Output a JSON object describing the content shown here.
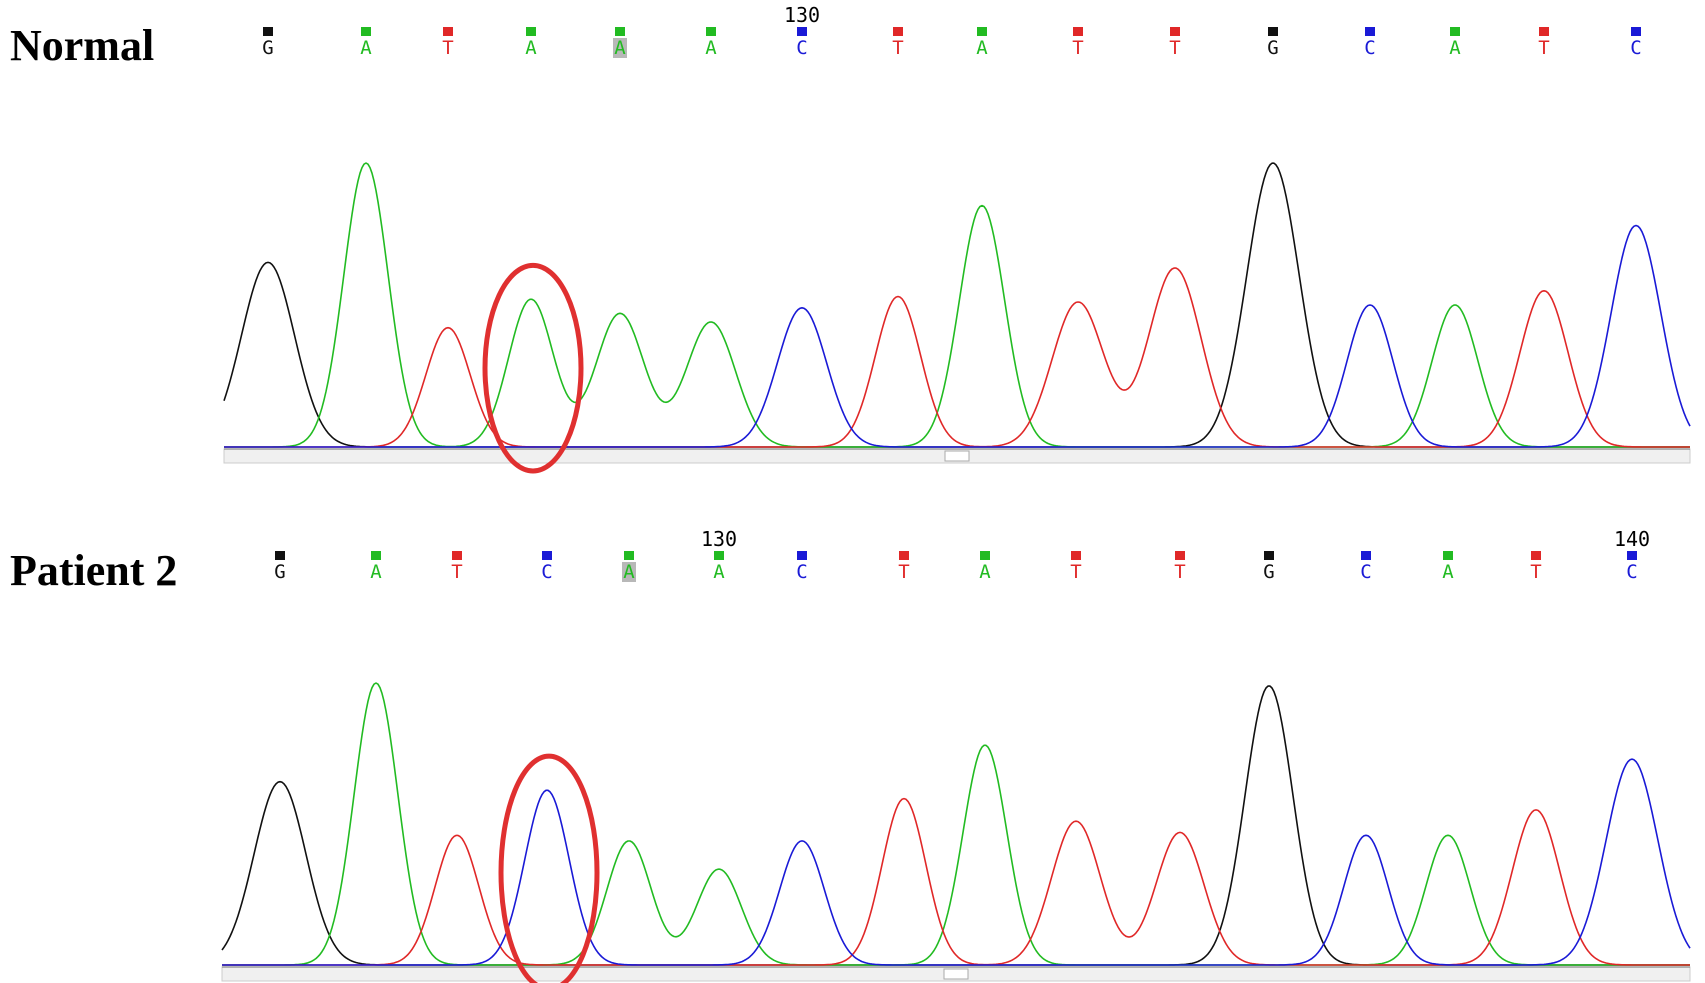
{
  "colors": {
    "A": "#22bb22",
    "C": "#1a1ad6",
    "G": "#111111",
    "T": "#e02828",
    "highlight": "#e03030",
    "axis": "#cccccc"
  },
  "chart_data": [
    {
      "type": "line",
      "title": "Normal",
      "bases": [
        "G",
        "A",
        "T",
        "A",
        "A",
        "A",
        "C",
        "T",
        "A",
        "T",
        "T",
        "G",
        "C",
        "A",
        "T",
        "C"
      ],
      "shaded_index": 4,
      "position_labels": [
        {
          "index": 6,
          "text": "130"
        }
      ],
      "peaks": [
        0.65,
        1.0,
        0.42,
        0.52,
        0.47,
        0.44,
        0.49,
        0.53,
        0.85,
        0.51,
        0.63,
        1.0,
        0.5,
        0.5,
        0.55,
        0.78
      ],
      "highlighted_index": 3,
      "ylim": [
        0,
        1
      ]
    },
    {
      "type": "line",
      "title": "Patient 2",
      "bases": [
        "G",
        "A",
        "T",
        "C",
        "A",
        "A",
        "C",
        "T",
        "A",
        "T",
        "T",
        "G",
        "C",
        "A",
        "T",
        "C"
      ],
      "shaded_index": 4,
      "position_labels": [
        {
          "index": 5,
          "text": "130"
        },
        {
          "index": 15,
          "text": "140"
        }
      ],
      "peaks": [
        0.65,
        1.0,
        0.46,
        0.62,
        0.44,
        0.34,
        0.44,
        0.59,
        0.78,
        0.51,
        0.47,
        0.99,
        0.46,
        0.46,
        0.55,
        0.73
      ],
      "highlighted_index": 3,
      "ylim": [
        0,
        1
      ]
    }
  ]
}
